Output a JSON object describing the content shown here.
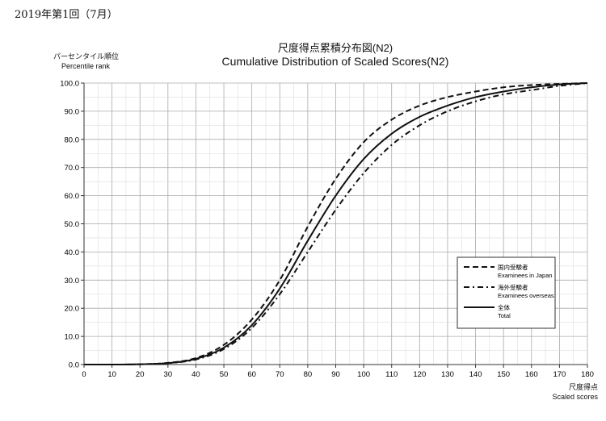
{
  "header": {
    "session": "2019年第1回（7月）"
  },
  "chart_data": {
    "type": "line",
    "title": "尺度得点累積分布図(N2)",
    "subtitle": "Cumulative Distribution of Scaled Scores(N2)",
    "ylabel": "パーセンタイル順位",
    "ylabel_en": "Percentile rank",
    "xlabel": "尺度得点",
    "xlabel_en": "Scaled scores",
    "xlim": [
      0,
      180
    ],
    "ylim": [
      0,
      100
    ],
    "grid": true,
    "legend": "right",
    "x": [
      0,
      10,
      20,
      30,
      40,
      50,
      60,
      70,
      80,
      90,
      100,
      110,
      120,
      130,
      140,
      150,
      160,
      170,
      180
    ],
    "xticks": [
      "0",
      "10",
      "20",
      "30",
      "40",
      "50",
      "60",
      "70",
      "80",
      "90",
      "100",
      "110",
      "120",
      "130",
      "140",
      "150",
      "160",
      "170",
      "180"
    ],
    "yticks": [
      "0.0",
      "10.0",
      "20.0",
      "30.0",
      "40.0",
      "50.0",
      "60.0",
      "70.0",
      "80.0",
      "90.0",
      "100.0"
    ],
    "series": [
      {
        "name": "国内受験者",
        "name_en": "Examinees in Japan",
        "style": "dashed",
        "values": [
          0,
          0,
          0.1,
          0.6,
          2.3,
          7,
          16,
          30,
          49,
          66,
          79,
          87,
          92,
          95,
          97,
          98.5,
          99.3,
          99.7,
          100
        ]
      },
      {
        "name": "海外受験者",
        "name_en": "Examinees overseas",
        "style": "dashdot",
        "values": [
          0,
          0,
          0.1,
          0.5,
          1.8,
          5.5,
          13,
          25,
          40,
          55,
          68,
          78,
          85,
          90,
          93.5,
          96,
          97.5,
          99,
          100
        ]
      },
      {
        "name": "全体",
        "name_en": "Total",
        "style": "solid",
        "values": [
          0,
          0,
          0.1,
          0.5,
          2,
          6,
          14,
          27,
          44,
          60,
          73,
          82,
          88,
          92,
          95,
          97,
          98.5,
          99.5,
          100
        ]
      }
    ]
  }
}
